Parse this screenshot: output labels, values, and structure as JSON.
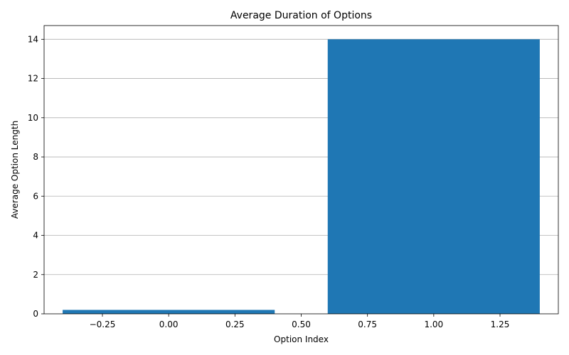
{
  "chart_data": {
    "type": "bar",
    "title": "Average Duration of Options",
    "xlabel": "Option Index",
    "ylabel": "Average Option Length",
    "x": [
      0,
      1
    ],
    "values": [
      0.2,
      14.0
    ],
    "bar_width": 0.8,
    "xlim": [
      -0.47,
      1.47
    ],
    "ylim": [
      0,
      14.7
    ],
    "x_ticks": [
      -0.25,
      0.0,
      0.25,
      0.5,
      0.75,
      1.0,
      1.25
    ],
    "x_tick_labels": [
      "−0.25",
      "0.00",
      "0.25",
      "0.50",
      "0.75",
      "1.00",
      "1.25"
    ],
    "y_ticks": [
      0,
      2,
      4,
      6,
      8,
      10,
      12,
      14
    ],
    "y_tick_labels": [
      "0",
      "2",
      "4",
      "6",
      "8",
      "10",
      "12",
      "14"
    ],
    "grid": "y",
    "bar_color": "#1f77b4",
    "grid_color": "#b0b0b0",
    "axis_color": "#000000"
  }
}
